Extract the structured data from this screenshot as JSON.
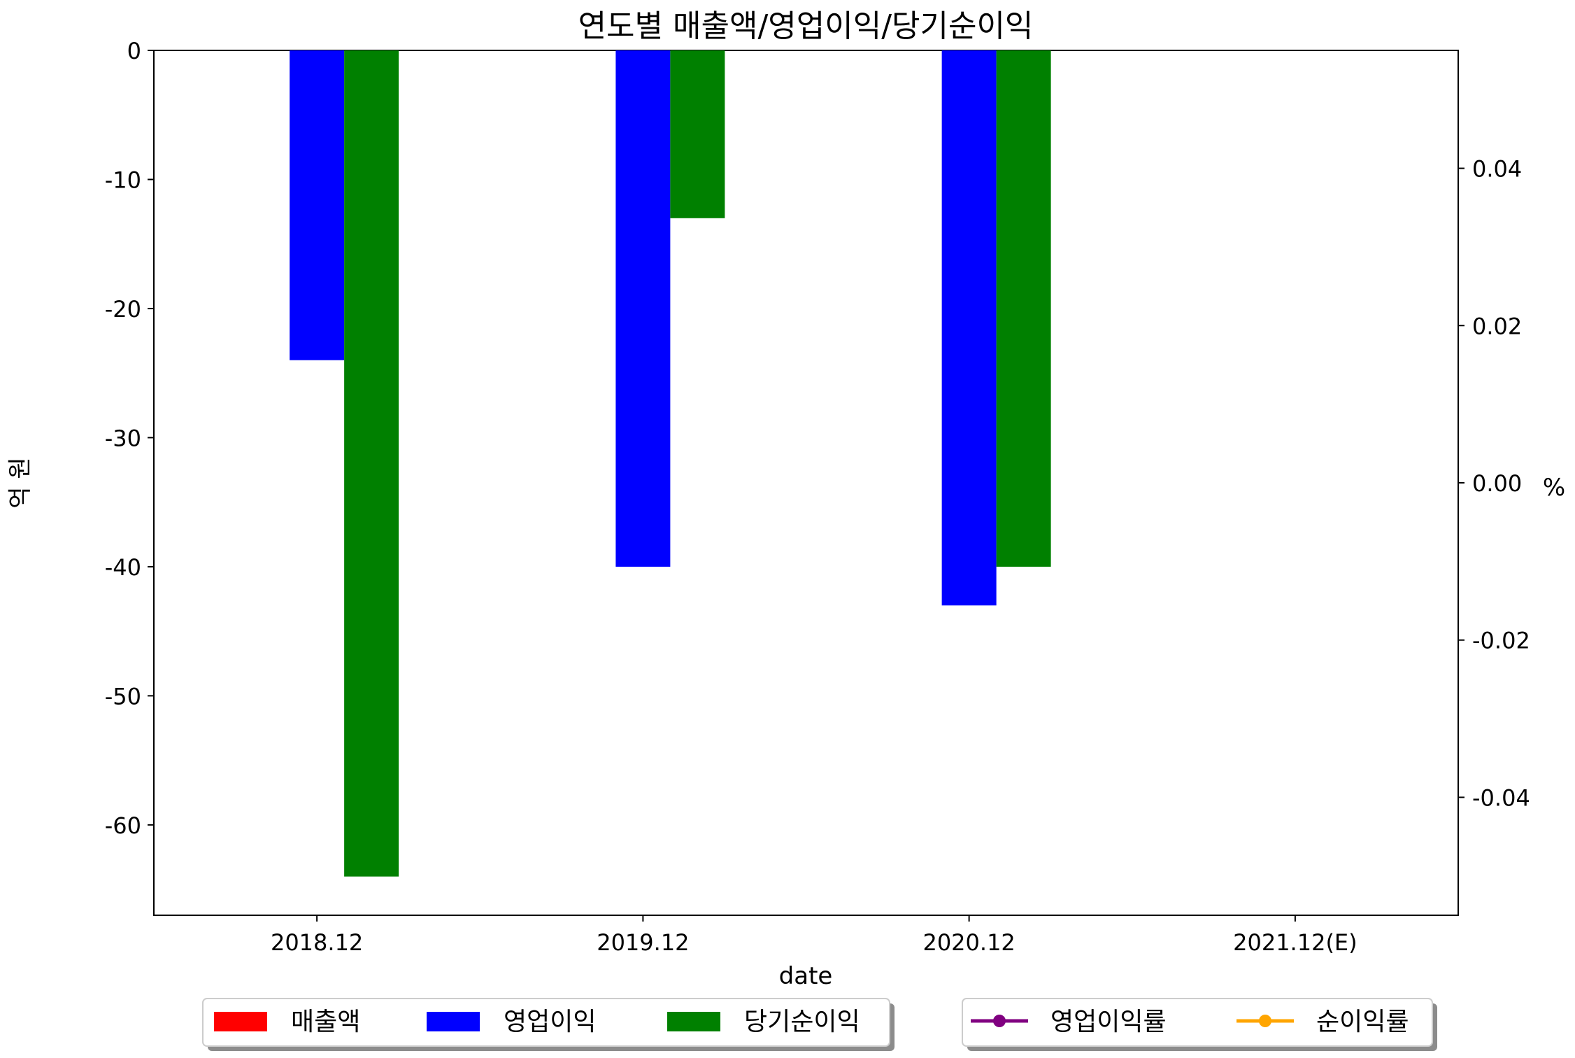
{
  "chart_data": {
    "type": "bar",
    "title": "연도별 매출액/영업이익/당기순이익",
    "xlabel": "date",
    "ylabel": "억 원",
    "y2label": "%",
    "categories": [
      "2018.12",
      "2019.12",
      "2020.12",
      "2021.12(E)"
    ],
    "ylim": [
      -67,
      0
    ],
    "yticks": [
      0,
      -10,
      -20,
      -30,
      -40,
      -50,
      -60
    ],
    "y2lim": [
      -0.055,
      0.055
    ],
    "y2ticks": [
      0.04,
      0.02,
      0.0,
      -0.02,
      -0.04
    ],
    "y2ticklabels": [
      "0.04",
      "0.02",
      "0.00",
      "-0.02",
      "-0.04"
    ],
    "series": [
      {
        "name": "매출액",
        "color": "#ff0000",
        "values": [
          null,
          null,
          null,
          null
        ]
      },
      {
        "name": "영업이익",
        "color": "#0000ff",
        "values": [
          -24,
          -40,
          -43,
          null
        ]
      },
      {
        "name": "당기순이익",
        "color": "#008000",
        "values": [
          -64,
          -13,
          -40,
          null
        ]
      }
    ],
    "line_series": [
      {
        "name": "영업이익률",
        "color": "#800080",
        "axis": "right",
        "values": [
          null,
          null,
          null,
          null
        ]
      },
      {
        "name": "순이익률",
        "color": "#ffa500",
        "axis": "right",
        "values": [
          null,
          null,
          null,
          null
        ]
      }
    ],
    "grid": false,
    "legend": [
      "bottom-left",
      "bottom-right"
    ]
  }
}
